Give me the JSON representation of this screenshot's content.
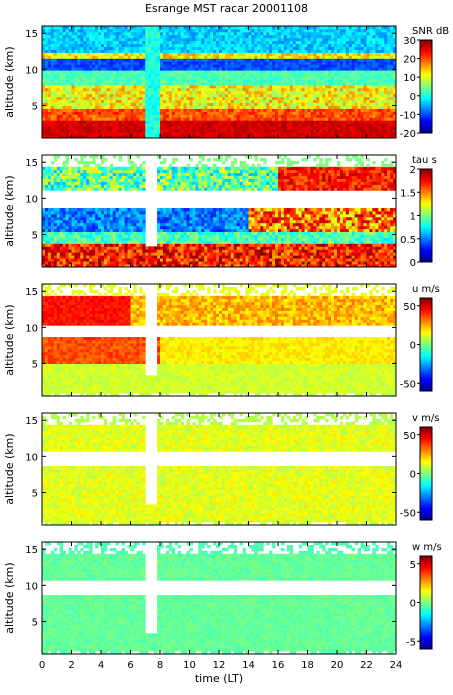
{
  "title": "Esrange MST racar 20001108",
  "chart_data": [
    {
      "type": "heatmap",
      "variable": "SNR",
      "colorbar_label": "SNR dB",
      "clim": [
        -20,
        30
      ],
      "colorbar_ticks": [
        -20,
        -10,
        0,
        10,
        20,
        30
      ],
      "ylabel": "altitude (km)",
      "yticks": [
        5,
        10,
        15
      ],
      "ylim": [
        0.5,
        16
      ],
      "xlim": [
        0,
        24
      ],
      "grid": false
    },
    {
      "type": "heatmap",
      "variable": "tau",
      "colorbar_label": "tau s",
      "clim": [
        0,
        2
      ],
      "colorbar_ticks": [
        0,
        0.5,
        1,
        1.5,
        2
      ],
      "ylabel": "altitude (km)",
      "yticks": [
        5,
        10,
        15
      ],
      "ylim": [
        0.5,
        16
      ],
      "xlim": [
        0,
        24
      ],
      "grid": false
    },
    {
      "type": "heatmap",
      "variable": "u",
      "colorbar_label": "u m/s",
      "clim": [
        -60,
        60
      ],
      "colorbar_ticks": [
        -50,
        0,
        50
      ],
      "ylabel": "altitude (km)",
      "yticks": [
        5,
        10,
        15
      ],
      "ylim": [
        0.5,
        16
      ],
      "xlim": [
        0,
        24
      ],
      "grid": false
    },
    {
      "type": "heatmap",
      "variable": "v",
      "colorbar_label": "v m/s",
      "clim": [
        -60,
        60
      ],
      "colorbar_ticks": [
        -50,
        0,
        50
      ],
      "ylabel": "altitude (km)",
      "yticks": [
        5,
        10,
        15
      ],
      "ylim": [
        0.5,
        16
      ],
      "xlim": [
        0,
        24
      ],
      "grid": false
    },
    {
      "type": "heatmap",
      "variable": "w",
      "colorbar_label": "w m/s",
      "clim": [
        -6,
        6
      ],
      "colorbar_ticks": [
        -5,
        0,
        5
      ],
      "ylabel": "altitude (km)",
      "yticks": [
        5,
        10,
        15
      ],
      "ylim": [
        0.5,
        16
      ],
      "xlim": [
        0,
        24
      ],
      "xlabel": "time (LT)",
      "xticks": [
        0,
        2,
        4,
        6,
        8,
        10,
        12,
        14,
        16,
        18,
        20,
        22,
        24
      ],
      "grid": false
    }
  ]
}
